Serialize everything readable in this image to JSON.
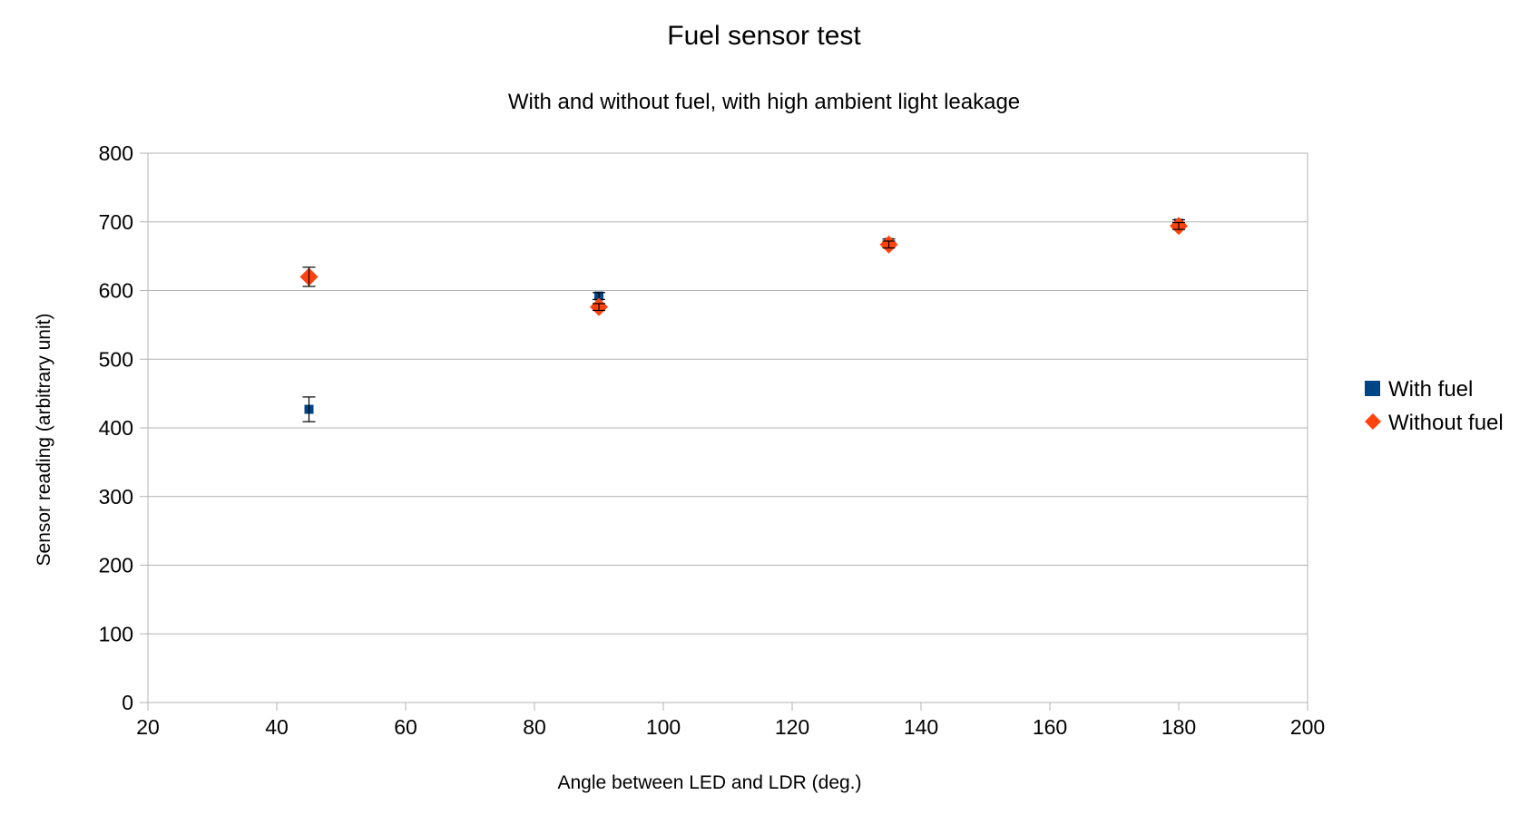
{
  "chart_data": {
    "type": "scatter",
    "title": "Fuel sensor test",
    "subtitle": "With and without fuel, with high ambient light leakage",
    "xlabel": "Angle between LED and LDR (deg.)",
    "ylabel": "Sensor reading (arbitrary unit)",
    "xlim": [
      20,
      200
    ],
    "ylim": [
      0,
      800
    ],
    "x_ticks": [
      20,
      40,
      60,
      80,
      100,
      120,
      140,
      160,
      180,
      200
    ],
    "y_ticks": [
      0,
      100,
      200,
      300,
      400,
      500,
      600,
      700,
      800
    ],
    "grid": "horizontal",
    "legend_position": "right",
    "series": [
      {
        "name": "With fuel",
        "marker": "square",
        "color": "#004586",
        "x": [
          45,
          90,
          135,
          180
        ],
        "y": [
          427,
          592,
          670,
          698
        ],
        "error": [
          18,
          5,
          5,
          5
        ]
      },
      {
        "name": "Without fuel",
        "marker": "diamond",
        "color": "#ff420e",
        "x": [
          45,
          90,
          135,
          180
        ],
        "y": [
          620,
          576,
          667,
          694
        ],
        "error": [
          14,
          5,
          5,
          5
        ]
      }
    ]
  }
}
